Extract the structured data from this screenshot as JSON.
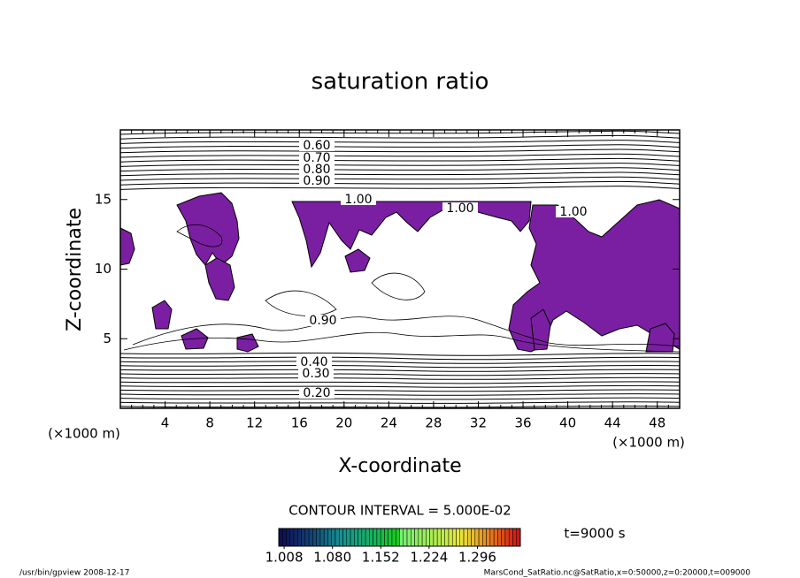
{
  "chart_data": {
    "type": "contour",
    "title": "saturation ratio",
    "x_label": "X-coordinate",
    "y_label": "Z-coordinate",
    "x_unit": "(×1000 m)",
    "y_unit": "(×1000 m)",
    "xlim": [
      0,
      50
    ],
    "xticks": [
      4,
      8,
      12,
      16,
      20,
      24,
      28,
      32,
      36,
      40,
      44,
      48
    ],
    "ylim": [
      0,
      20
    ],
    "yticks": [
      5,
      10,
      15
    ],
    "contour_labels": [
      {
        "value": 0.6,
        "label": "0.60"
      },
      {
        "value": 0.7,
        "label": "0.70"
      },
      {
        "value": 0.8,
        "label": "0.80"
      },
      {
        "value": 0.9,
        "label": "0.90"
      },
      {
        "value": 1.0,
        "label": "1.00"
      },
      {
        "value": 1.0,
        "label": "1.00"
      },
      {
        "value": 1.0,
        "label": "1.00"
      },
      {
        "value": 0.9,
        "label": "0.90"
      },
      {
        "value": 0.4,
        "label": "0.40"
      },
      {
        "value": 0.3,
        "label": "0.30"
      },
      {
        "value": 0.2,
        "label": "0.20"
      }
    ],
    "fill_color": "#7b1fa2",
    "contour_interval_text": "CONTOUR INTERVAL = 5.000E-02",
    "colorbar_lim": [
      1.0,
      1.36
    ],
    "colorbar_ticks": [
      {
        "value": 1.008,
        "label": "1.008"
      },
      {
        "value": 1.08,
        "label": "1.080"
      },
      {
        "value": 1.152,
        "label": "1.152"
      },
      {
        "value": 1.224,
        "label": "1.224"
      },
      {
        "value": 1.296,
        "label": "1.296"
      }
    ],
    "time_text": "t=9000 s",
    "footer_left": "/usr/bin/gpview  2008-12-17",
    "footer_right": "MarsCond_SatRatio.nc@SatRatio,x=0:50000,z=0:20000,t=009000"
  }
}
